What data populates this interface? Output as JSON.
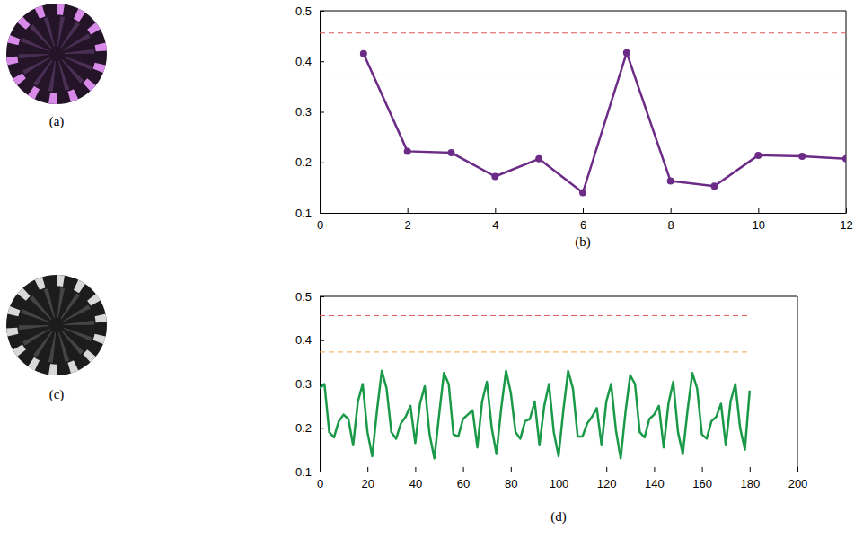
{
  "images": [
    {
      "label": "(a)"
    },
    {
      "label": "(c)"
    }
  ],
  "chart_data": [
    {
      "type": "line",
      "title": "(b)",
      "x": [
        1,
        2,
        3,
        4,
        5,
        6,
        7,
        8,
        9,
        10,
        11,
        12
      ],
      "series": [
        {
          "color": "#6b2b86",
          "marker": "circle",
          "values": [
            0.415,
            0.222,
            0.219,
            0.172,
            0.207,
            0.14,
            0.417,
            0.163,
            0.153,
            0.214,
            0.212,
            0.207
          ]
        }
      ],
      "hlines": [
        {
          "value": 0.456,
          "x": [
            0,
            12
          ],
          "color": "#dd5a5a",
          "line_style": "dashed"
        },
        {
          "value": 0.373,
          "x": [
            0,
            12
          ],
          "color": "#f0a64a",
          "line_style": "dashed"
        }
      ],
      "xlim": [
        0,
        12
      ],
      "ylim": [
        0.1,
        0.5
      ],
      "xticks": [
        0,
        2,
        4,
        6,
        8,
        10,
        12
      ],
      "yticks": [
        0.1,
        0.2,
        0.3,
        0.4,
        0.5
      ]
    },
    {
      "type": "line",
      "title": "(d)",
      "x": [
        0,
        2,
        4,
        6,
        8,
        10,
        12,
        14,
        16,
        18,
        20,
        22,
        24,
        26,
        28,
        30,
        32,
        34,
        36,
        38,
        40,
        42,
        44,
        46,
        48,
        50,
        52,
        54,
        56,
        58,
        60,
        62,
        64,
        66,
        68,
        70,
        72,
        74,
        76,
        78,
        80,
        82,
        84,
        86,
        88,
        90,
        92,
        94,
        96,
        98,
        100,
        102,
        104,
        106,
        108,
        110,
        112,
        114,
        116,
        118,
        120,
        122,
        124,
        126,
        128,
        130,
        132,
        134,
        136,
        138,
        140,
        142,
        144,
        146,
        148,
        150,
        152,
        154,
        156,
        158,
        160,
        162,
        164,
        166,
        168,
        170,
        172,
        174,
        176,
        178,
        180
      ],
      "series": [
        {
          "color": "#1a9a48",
          "marker": "none",
          "values": [
            0.29,
            0.3,
            0.19,
            0.178,
            0.215,
            0.23,
            0.22,
            0.16,
            0.26,
            0.3,
            0.19,
            0.135,
            0.24,
            0.33,
            0.29,
            0.19,
            0.175,
            0.21,
            0.225,
            0.25,
            0.165,
            0.255,
            0.295,
            0.185,
            0.13,
            0.23,
            0.325,
            0.3,
            0.185,
            0.18,
            0.22,
            0.23,
            0.24,
            0.155,
            0.26,
            0.305,
            0.2,
            0.14,
            0.245,
            0.33,
            0.28,
            0.19,
            0.175,
            0.215,
            0.22,
            0.26,
            0.16,
            0.25,
            0.3,
            0.19,
            0.135,
            0.24,
            0.33,
            0.29,
            0.18,
            0.18,
            0.21,
            0.225,
            0.245,
            0.16,
            0.26,
            0.3,
            0.195,
            0.13,
            0.235,
            0.32,
            0.3,
            0.19,
            0.178,
            0.22,
            0.23,
            0.25,
            0.155,
            0.255,
            0.305,
            0.19,
            0.14,
            0.24,
            0.325,
            0.29,
            0.185,
            0.175,
            0.215,
            0.225,
            0.255,
            0.16,
            0.26,
            0.3,
            0.2,
            0.15,
            0.285
          ]
        }
      ],
      "hlines": [
        {
          "value": 0.456,
          "x": [
            0,
            180
          ],
          "color": "#dd5a5a",
          "line_style": "dashed"
        },
        {
          "value": 0.373,
          "x": [
            0,
            180
          ],
          "color": "#f0a64a",
          "line_style": "dashed"
        }
      ],
      "xlim": [
        0,
        200
      ],
      "ylim": [
        0.1,
        0.5
      ],
      "xticks": [
        0,
        20,
        40,
        60,
        80,
        100,
        120,
        140,
        160,
        180,
        200
      ],
      "yticks": [
        0.1,
        0.2,
        0.3,
        0.4,
        0.5
      ]
    }
  ]
}
